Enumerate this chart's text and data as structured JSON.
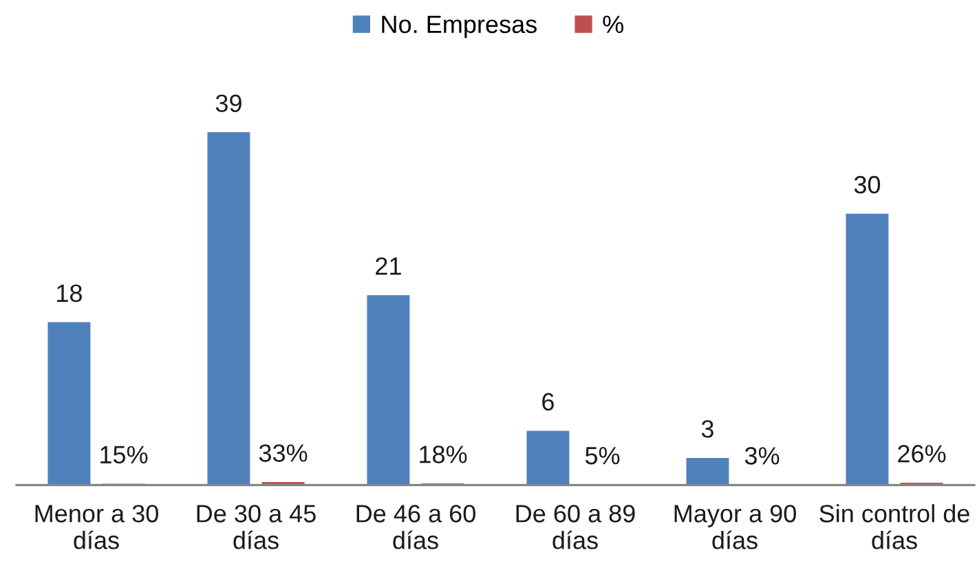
{
  "chart_data": {
    "type": "bar",
    "categories": [
      "Menor a 30 días",
      "De 30 a 45 días",
      "De 46 a 60 días",
      "De 60 a 89 días",
      "Mayor a 90 días",
      "Sin control de días"
    ],
    "series": [
      {
        "name": "No. Empresas",
        "color": "#4f81bd",
        "values": [
          18,
          39,
          21,
          6,
          3,
          30
        ],
        "value_labels": [
          "18",
          "39",
          "21",
          "6",
          "3",
          "30"
        ]
      },
      {
        "name": "%",
        "color": "#c0504d",
        "values": [
          0.15,
          0.33,
          0.18,
          0.05,
          0.03,
          0.26
        ],
        "value_labels": [
          "15%",
          "33%",
          "18%",
          "5%",
          "3%",
          "26%"
        ]
      }
    ],
    "legend": "top"
  }
}
